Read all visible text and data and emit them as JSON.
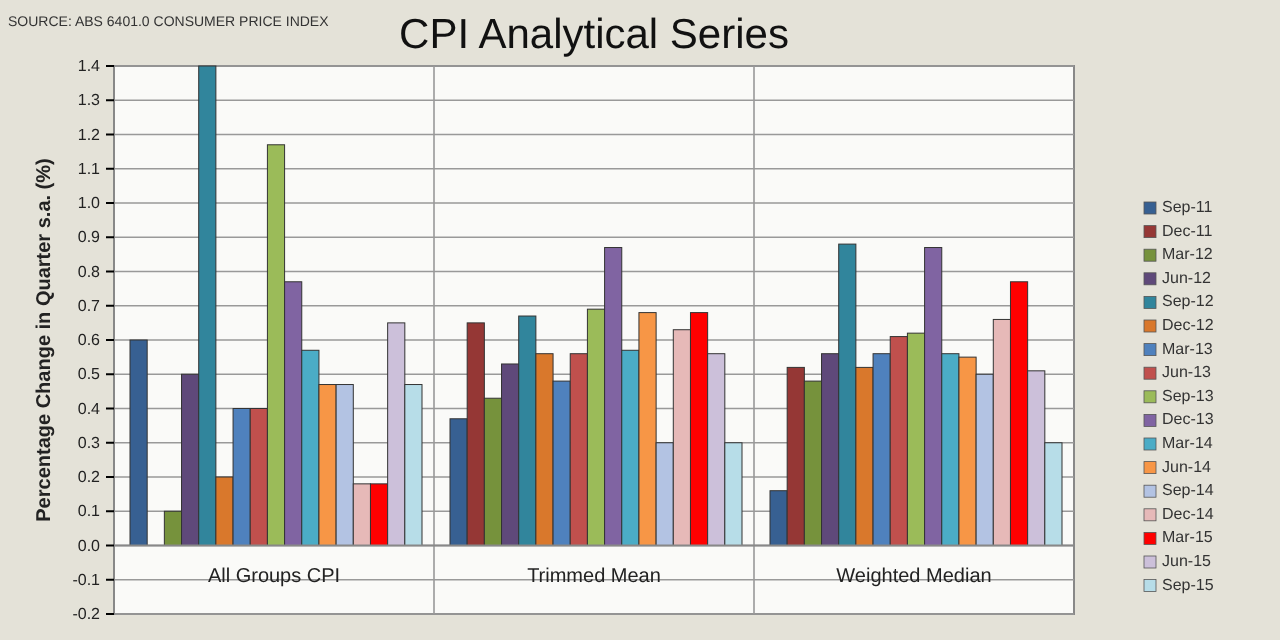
{
  "chart_data": {
    "type": "bar",
    "title": "CPI Analytical Series",
    "ylabel": "Percentage Change in Quarter s.a.  (%)",
    "annotations": [
      "SOURCE: ABS 6401.0 CONSUMER PRICE INDEX"
    ],
    "categories": [
      "All Groups CPI",
      "Trimmed Mean",
      "Weighted Median"
    ],
    "series": [
      {
        "name": "Sep-11",
        "color": "#376092",
        "values": [
          0.6,
          0.37,
          0.16
        ]
      },
      {
        "name": "Dec-11",
        "color": "#953735",
        "values": [
          0.0,
          0.65,
          0.52
        ]
      },
      {
        "name": "Mar-12",
        "color": "#76923c",
        "values": [
          0.1,
          0.43,
          0.48
        ]
      },
      {
        "name": "Jun-12",
        "color": "#5f497a",
        "values": [
          0.5,
          0.53,
          0.56
        ]
      },
      {
        "name": "Sep-12",
        "color": "#31859c",
        "values": [
          1.4,
          0.67,
          0.88
        ]
      },
      {
        "name": "Dec-12",
        "color": "#d9782c",
        "values": [
          0.2,
          0.56,
          0.52
        ]
      },
      {
        "name": "Mar-13",
        "color": "#4f81bd",
        "values": [
          0.4,
          0.48,
          0.56
        ]
      },
      {
        "name": "Jun-13",
        "color": "#c0504d",
        "values": [
          0.4,
          0.56,
          0.61
        ]
      },
      {
        "name": "Sep-13",
        "color": "#9bbb59",
        "values": [
          1.17,
          0.69,
          0.62
        ]
      },
      {
        "name": "Dec-13",
        "color": "#8064a2",
        "values": [
          0.77,
          0.87,
          0.87
        ]
      },
      {
        "name": "Mar-14",
        "color": "#4bacc6",
        "values": [
          0.57,
          0.57,
          0.56
        ]
      },
      {
        "name": "Jun-14",
        "color": "#f79646",
        "values": [
          0.47,
          0.68,
          0.55
        ]
      },
      {
        "name": "Sep-14",
        "color": "#b3c3e3",
        "values": [
          0.47,
          0.3,
          0.5
        ]
      },
      {
        "name": "Dec-14",
        "color": "#e6b9b8",
        "values": [
          0.18,
          0.63,
          0.66
        ]
      },
      {
        "name": "Mar-15",
        "color": "#ff0000",
        "values": [
          0.18,
          0.68,
          0.77
        ]
      },
      {
        "name": "Jun-15",
        "color": "#ccc0da",
        "values": [
          0.65,
          0.56,
          0.51
        ]
      },
      {
        "name": "Sep-15",
        "color": "#b7dde8",
        "values": [
          0.47,
          0.3,
          0.3
        ]
      }
    ],
    "ylim": [
      -0.2,
      1.4
    ],
    "yticks": [
      {
        "value": -0.2,
        "label": "-0.2"
      },
      {
        "value": -0.1,
        "label": "-0.1"
      },
      {
        "value": 0,
        "label": "0.0"
      },
      0.1,
      0.2,
      0.3,
      0.4,
      0.5,
      0.6,
      0.7,
      0.8,
      0.9,
      {
        "value": 1,
        "label": "1.0"
      },
      1.1,
      1.2,
      1.3,
      1.4
    ],
    "grid": true,
    "legend": "right"
  }
}
